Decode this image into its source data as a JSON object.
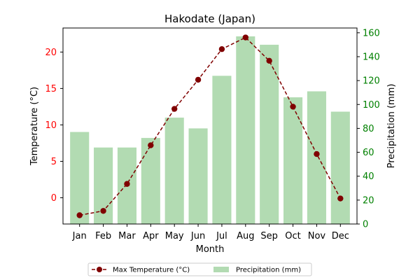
{
  "chart_data": {
    "type": "bar+line",
    "title": "Hakodate (Japan)",
    "xlabel": "Month",
    "categories": [
      "Jan",
      "Feb",
      "Mar",
      "Apr",
      "May",
      "Jun",
      "Jul",
      "Aug",
      "Sep",
      "Oct",
      "Nov",
      "Dec"
    ],
    "y_left": {
      "label": "Temperature (°C)",
      "color": "#ff0000",
      "lim": [
        -3.6,
        23.3
      ],
      "ticks": [
        0,
        5,
        10,
        15,
        20
      ]
    },
    "y_right": {
      "label": "Precipitation (mm)",
      "color": "#008000",
      "lim": [
        0,
        164
      ],
      "ticks": [
        0,
        20,
        40,
        60,
        80,
        100,
        120,
        140,
        160
      ]
    },
    "series": [
      {
        "name": "Max Temperature (°C)",
        "type": "line",
        "axis": "left",
        "color": "#800000",
        "style": "dashed",
        "marker": "circle",
        "values": [
          -2.4,
          -1.8,
          1.9,
          7.2,
          12.2,
          16.2,
          20.4,
          22.0,
          18.8,
          12.5,
          6.0,
          -0.1
        ]
      },
      {
        "name": "Precipitation (mm)",
        "type": "bar",
        "axis": "right",
        "color": "#b2dbb2",
        "values": [
          77,
          64,
          64,
          72,
          89,
          80,
          124,
          157,
          150,
          106,
          111,
          94
        ]
      }
    ],
    "legend": {
      "position": "bottom-center",
      "ncol": 2
    },
    "grid": false
  }
}
